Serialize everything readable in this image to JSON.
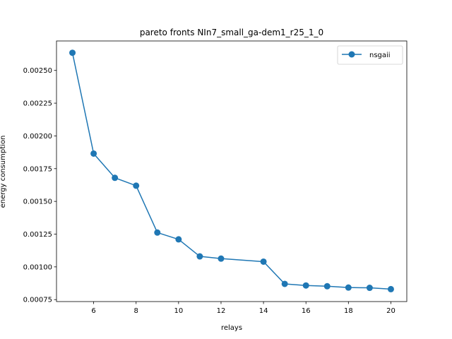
{
  "chart_data": {
    "type": "line",
    "title": "pareto fronts NIn7_small_ga-dem1_r25_1_0",
    "xlabel": "relays",
    "ylabel": "energy consumption",
    "xlim": [
      4.25,
      20.75
    ],
    "ylim": [
      0.000735,
      0.002725
    ],
    "x_ticks": [
      6,
      8,
      10,
      12,
      14,
      16,
      18,
      20
    ],
    "x_tick_labels": [
      "6",
      "8",
      "10",
      "12",
      "14",
      "16",
      "18",
      "20"
    ],
    "y_ticks": [
      0.00075,
      0.001,
      0.00125,
      0.0015,
      0.00175,
      0.002,
      0.00225,
      0.0025
    ],
    "y_tick_labels": [
      "0.00075",
      "0.00100",
      "0.00125",
      "0.00150",
      "0.00175",
      "0.00200",
      "0.00225",
      "0.00250"
    ],
    "grid": false,
    "legend_position": "top-right",
    "series": [
      {
        "name": "nsgaii",
        "color": "#1f77b4",
        "marker": "circle",
        "x": [
          5,
          6,
          7,
          8,
          9,
          10,
          11,
          12,
          14,
          15,
          16,
          17,
          18,
          19,
          20
        ],
        "y": [
          0.002635,
          0.001865,
          0.00168,
          0.00162,
          0.001262,
          0.00121,
          0.00108,
          0.001063,
          0.00104,
          0.00087,
          0.000858,
          0.000852,
          0.000842,
          0.00084,
          0.00083
        ]
      }
    ]
  }
}
